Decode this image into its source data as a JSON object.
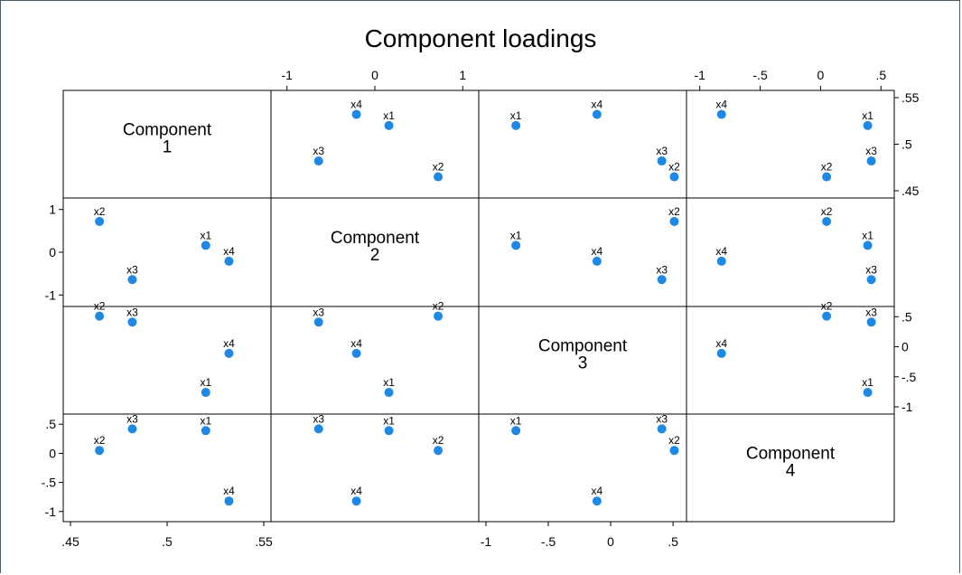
{
  "chart_data": {
    "type": "scatter",
    "subtype": "scatter-matrix",
    "title": "Component loadings",
    "components": [
      "Component 1",
      "Component 2",
      "Component 3",
      "Component 4"
    ],
    "diagonal_labels": [
      [
        "Component",
        "1"
      ],
      [
        "Component",
        "2"
      ],
      [
        "Component",
        "3"
      ],
      [
        "Component",
        "4"
      ]
    ],
    "variables": [
      {
        "name": "x1",
        "loadings": [
          0.52,
          0.16,
          -0.76,
          0.39
        ]
      },
      {
        "name": "x2",
        "loadings": [
          0.465,
          0.72,
          0.51,
          0.05
        ]
      },
      {
        "name": "x3",
        "loadings": [
          0.482,
          -0.64,
          0.41,
          0.42
        ]
      },
      {
        "name": "x4",
        "loadings": [
          0.532,
          -0.21,
          -0.11,
          -0.82
        ]
      }
    ],
    "axes": [
      {
        "range": [
          0.45,
          0.55
        ],
        "ticks": [
          0.45,
          0.5,
          0.55
        ],
        "tick_labels": [
          ".45",
          ".5",
          ".55"
        ]
      },
      {
        "range": [
          -1.1,
          1.1
        ],
        "ticks": [
          -1,
          0,
          1
        ],
        "tick_labels": [
          "-1",
          "0",
          "1"
        ]
      },
      {
        "range": [
          -1.0,
          0.55
        ],
        "ticks": [
          -1,
          -0.5,
          0,
          0.5
        ],
        "tick_labels": [
          "-1",
          "-.5",
          "0",
          ".5"
        ]
      },
      {
        "range": [
          -1.05,
          0.55
        ],
        "ticks": [
          -1,
          -0.5,
          0,
          0.5
        ],
        "tick_labels": [
          "-1",
          "-.5",
          "0",
          ".5"
        ]
      }
    ],
    "grid": false,
    "legend": "none",
    "marker_color": "#1e88e5"
  }
}
